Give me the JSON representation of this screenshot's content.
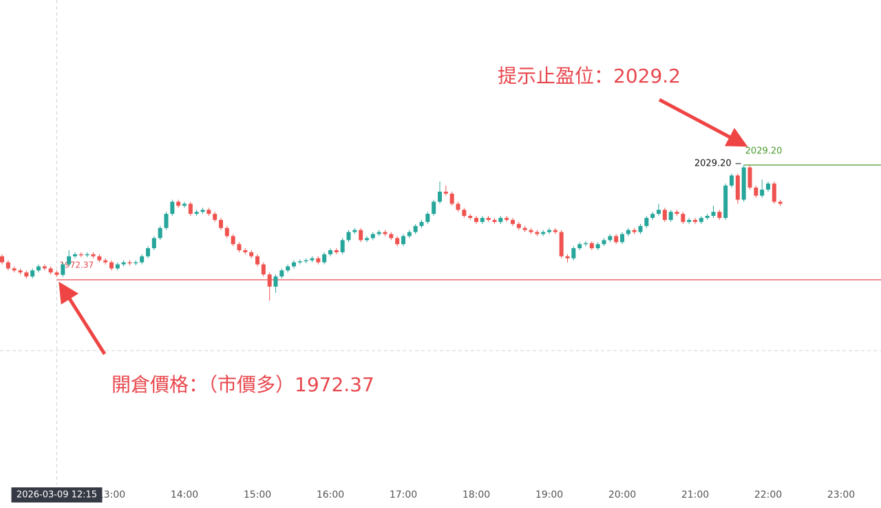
{
  "chart_data": {
    "type": "candlestick",
    "x": [
      "11:30",
      "11:35",
      "11:40",
      "11:45",
      "11:50",
      "11:55",
      "12:00",
      "12:05",
      "12:10",
      "12:15",
      "12:20",
      "12:25",
      "12:30",
      "12:35",
      "12:40",
      "12:45",
      "12:50",
      "12:55",
      "13:00",
      "13:05",
      "13:10",
      "13:15",
      "13:20",
      "13:25",
      "13:30",
      "13:35",
      "13:40",
      "13:45",
      "13:50",
      "13:55",
      "14:00",
      "14:05",
      "14:10",
      "14:15",
      "14:20",
      "14:25",
      "14:30",
      "14:35",
      "14:40",
      "14:45",
      "14:50",
      "14:55",
      "15:00",
      "15:05",
      "15:10",
      "15:15",
      "15:20",
      "15:25",
      "15:30",
      "15:35",
      "15:40",
      "15:45",
      "15:50",
      "15:55",
      "16:00",
      "16:05",
      "16:10",
      "16:15",
      "16:20",
      "16:25",
      "16:30",
      "16:35",
      "16:40",
      "16:45",
      "16:50",
      "16:55",
      "17:00",
      "17:05",
      "17:10",
      "17:15",
      "17:20",
      "17:25",
      "17:30",
      "17:35",
      "17:40",
      "17:45",
      "17:50",
      "17:55",
      "18:00",
      "18:05",
      "18:10",
      "18:15",
      "18:20",
      "18:25",
      "18:30",
      "18:35",
      "18:40",
      "18:45",
      "18:50",
      "18:55",
      "19:00",
      "19:05",
      "19:10",
      "19:15",
      "19:20",
      "19:25",
      "19:30",
      "19:35",
      "19:40",
      "19:45",
      "19:50",
      "19:55",
      "20:00",
      "20:05",
      "20:10",
      "20:15",
      "20:20",
      "20:25",
      "20:30",
      "20:35",
      "20:40",
      "20:45",
      "20:50",
      "20:55",
      "21:00",
      "21:05",
      "21:10",
      "21:15",
      "21:20",
      "21:25",
      "21:30",
      "21:35",
      "21:40",
      "21:45",
      "21:50",
      "21:55",
      "22:00",
      "22:05",
      "22:10"
    ],
    "open": [
      1984,
      1981,
      1978,
      1977,
      1976,
      1974,
      1977,
      1979,
      1978,
      1976,
      1974.8,
      1980,
      1984,
      1985,
      1984.5,
      1985,
      1984,
      1982,
      1981,
      1978,
      1980,
      1981,
      1980.5,
      1981,
      1984,
      1988,
      1993,
      1998,
      2005,
      2011,
      2009,
      2010,
      2005,
      2006,
      2007,
      2005,
      2002,
      1998,
      1994,
      1990,
      1987,
      1986,
      1984,
      1980,
      1975,
      1969,
      1974,
      1977,
      1979,
      1981,
      1981.5,
      1982,
      1983,
      1981,
      1985,
      1987,
      1986,
      1992,
      1996,
      1997,
      1992,
      1993,
      1995,
      1996,
      1995,
      1993,
      1990,
      1994,
      1996,
      1999,
      2001,
      2005,
      2011,
      2016,
      2015,
      2010,
      2007,
      2004,
      2003,
      2001,
      2003,
      2002,
      2001,
      2003,
      2002,
      2000,
      1998,
      1997,
      1996,
      1995,
      1996,
      1997,
      1996,
      1984,
      1983,
      1988,
      1990,
      1990.5,
      1988,
      1990,
      1992,
      1994,
      1991,
      1995,
      1997,
      1996,
      1999,
      2003,
      2005,
      2007,
      2002,
      2006,
      2005,
      2001,
      2002,
      2001,
      2003,
      2004,
      2006,
      2003,
      2019,
      2024,
      2012,
      2028,
      2018,
      2014,
      2017,
      2020,
      2011
    ],
    "high": [
      1985,
      1982,
      1979,
      1978,
      1977,
      1978,
      1980,
      1980,
      1979,
      1977,
      1981,
      1987,
      1986,
      1986,
      1986,
      1986,
      1985,
      1983,
      1982,
      1981,
      1982,
      1982,
      1982,
      1985,
      1989,
      1994,
      1999,
      2006,
      2012,
      2012,
      2011,
      2011,
      2007,
      2008,
      2008,
      2006,
      2003,
      1999,
      1995,
      1991,
      1988,
      1987,
      1985,
      1981,
      1976,
      1975,
      1978,
      1980,
      1982,
      1982.5,
      1983,
      1984,
      1984,
      1986,
      1988,
      1988,
      1993,
      1997,
      1998,
      1998,
      1994,
      1996,
      1997,
      1997,
      1996,
      1994,
      1995,
      1997,
      2000,
      2002,
      2006,
      2012,
      2021,
      2019,
      2016,
      2011,
      2008,
      2005,
      2004,
      2004,
      2004,
      2003,
      2004,
      2004,
      2003,
      2001,
      1999,
      1998,
      1997,
      1997,
      1998,
      1998,
      1997,
      1985,
      1989,
      1991,
      1991.5,
      1991.5,
      1991,
      1993,
      1995,
      1995,
      1996,
      1998,
      1998,
      2000,
      2004,
      2006,
      2010,
      2008,
      2007,
      2007,
      2006,
      2003,
      2003,
      2004,
      2005,
      2009,
      2007,
      2020,
      2025,
      2025,
      2029.2,
      2029,
      2019,
      2022,
      2021,
      2021,
      2012
    ],
    "low": [
      1980,
      1977,
      1976,
      1975,
      1973,
      1973,
      1976,
      1977,
      1975,
      1973.8,
      1973.8,
      1979,
      1983,
      1983.5,
      1983.5,
      1983,
      1981,
      1980,
      1977,
      1977,
      1979,
      1979.5,
      1979.5,
      1980,
      1983,
      1987,
      1992,
      1997,
      2004,
      2008,
      2008,
      2004,
      2004,
      2005,
      2004,
      2001,
      1997,
      1993,
      1989,
      1986,
      1985,
      1983,
      1979,
      1974,
      1962,
      1966,
      1973,
      1976,
      1978,
      1980,
      1980.5,
      1981,
      1980,
      1980,
      1984,
      1985,
      1985,
      1991,
      1995,
      1991,
      1991,
      1992,
      1994,
      1994,
      1992,
      1989,
      1989,
      1993,
      1995,
      1998,
      2000,
      2004,
      2010,
      2014,
      2009,
      2006,
      2003,
      2002,
      2000,
      2000,
      2001,
      2000,
      2000,
      2001,
      1999,
      1997,
      1996,
      1995,
      1994,
      1994,
      1995,
      1995,
      1983,
      1981,
      1982,
      1987,
      1989,
      1987,
      1987,
      1989,
      1991,
      1990,
      1990,
      1994,
      1995,
      1995,
      1998,
      2002,
      2004,
      2001,
      2001,
      2004,
      2000,
      2000,
      2000,
      2000,
      2002,
      2003,
      2002,
      2002,
      2018,
      2010,
      2011,
      2017,
      2013,
      2013,
      2016,
      2010,
      2009
    ],
    "close": [
      1981,
      1978,
      1977,
      1976,
      1974,
      1977,
      1979,
      1978,
      1976,
      1974.8,
      1980,
      1984,
      1985,
      1984.5,
      1985,
      1984,
      1982,
      1981,
      1978,
      1980,
      1981,
      1980.5,
      1981,
      1984,
      1988,
      1993,
      1998,
      2005,
      2011,
      2009,
      2010,
      2005,
      2006,
      2007,
      2005,
      2002,
      1998,
      1994,
      1990,
      1987,
      1986,
      1984,
      1980,
      1975,
      1969,
      1974,
      1977,
      1979,
      1981,
      1981.5,
      1982,
      1983,
      1981,
      1985,
      1987,
      1986,
      1992,
      1996,
      1997,
      1992,
      1993,
      1995,
      1996,
      1995,
      1993,
      1990,
      1994,
      1996,
      1999,
      2001,
      2005,
      2011,
      2016,
      2015,
      2010,
      2007,
      2004,
      2003,
      2001,
      2003,
      2002,
      2001,
      2003,
      2002,
      2000,
      1998,
      1997,
      1996,
      1995,
      1996,
      1997,
      1996,
      1984,
      1983,
      1988,
      1990,
      1990.5,
      1988,
      1990,
      1992,
      1994,
      1991,
      1995,
      1997,
      1996,
      1999,
      2003,
      2005,
      2007,
      2002,
      2006,
      2005,
      2001,
      2002,
      2001,
      2003,
      2004,
      2006,
      2003,
      2019,
      2024,
      2012,
      2028,
      2018,
      2014,
      2017,
      2020,
      2011,
      2010
    ],
    "up_color": "#26a69a",
    "down_color": "#ef5350",
    "xticks": [
      "13:00",
      "14:00",
      "15:00",
      "16:00",
      "17:00",
      "18:00",
      "19:00",
      "20:00",
      "21:00",
      "22:00",
      "23:00"
    ],
    "crosshair_label": "2026-03-09 12:15",
    "entry": {
      "value": 1972.37,
      "color": "#e8474d"
    },
    "take_profit": {
      "value": 2029.2,
      "label": "2029.20",
      "color": "#4a9a2e"
    },
    "high_marker": {
      "value": 2029.2,
      "label": "2029.20"
    },
    "annotations": [
      "提示止盈位：2029.2",
      "開倉價格：（市價多）1972.37"
    ]
  }
}
